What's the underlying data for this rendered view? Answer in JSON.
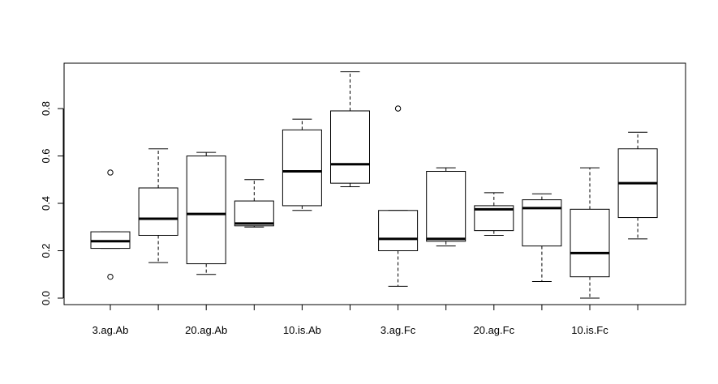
{
  "chart_data": {
    "type": "boxplot",
    "title": "",
    "xlabel": "",
    "ylabel": "",
    "ylim": [
      -0.03,
      0.99
    ],
    "y_ticks": [
      0.0,
      0.2,
      0.4,
      0.6,
      0.8
    ],
    "y_tick_labels": [
      "0.0",
      "0.2",
      "0.4",
      "0.6",
      "0.8"
    ],
    "x_tick_labels_shown": [
      {
        "position": 1,
        "label": "3.ag.Ab"
      },
      {
        "position": 3,
        "label": "20.ag.Ab"
      },
      {
        "position": 5,
        "label": "10.is.Ab"
      },
      {
        "position": 7,
        "label": "3.ag.Fc"
      },
      {
        "position": 9,
        "label": "20.ag.Fc"
      },
      {
        "position": 11,
        "label": "10.is.Fc"
      }
    ],
    "grid": false,
    "boxes": [
      {
        "position": 1,
        "whisker_low": 0.21,
        "q1": 0.21,
        "median": 0.24,
        "q3": 0.28,
        "whisker_high": 0.28,
        "outliers": [
          0.53,
          0.09
        ]
      },
      {
        "position": 2,
        "whisker_low": 0.15,
        "q1": 0.265,
        "median": 0.335,
        "q3": 0.465,
        "whisker_high": 0.63,
        "outliers": []
      },
      {
        "position": 3,
        "whisker_low": 0.1,
        "q1": 0.145,
        "median": 0.355,
        "q3": 0.6,
        "whisker_high": 0.615,
        "outliers": []
      },
      {
        "position": 4,
        "whisker_low": 0.3,
        "q1": 0.305,
        "median": 0.315,
        "q3": 0.41,
        "whisker_high": 0.5,
        "outliers": []
      },
      {
        "position": 5,
        "whisker_low": 0.37,
        "q1": 0.39,
        "median": 0.535,
        "q3": 0.71,
        "whisker_high": 0.755,
        "outliers": []
      },
      {
        "position": 6,
        "whisker_low": 0.47,
        "q1": 0.485,
        "median": 0.565,
        "q3": 0.79,
        "whisker_high": 0.955,
        "outliers": []
      },
      {
        "position": 7,
        "whisker_low": 0.05,
        "q1": 0.2,
        "median": 0.25,
        "q3": 0.37,
        "whisker_high": 0.37,
        "outliers": [
          0.8
        ]
      },
      {
        "position": 8,
        "whisker_low": 0.22,
        "q1": 0.24,
        "median": 0.25,
        "q3": 0.535,
        "whisker_high": 0.55,
        "outliers": []
      },
      {
        "position": 9,
        "whisker_low": 0.265,
        "q1": 0.285,
        "median": 0.375,
        "q3": 0.39,
        "whisker_high": 0.445,
        "outliers": []
      },
      {
        "position": 10,
        "whisker_low": 0.07,
        "q1": 0.22,
        "median": 0.38,
        "q3": 0.415,
        "whisker_high": 0.44,
        "outliers": []
      },
      {
        "position": 11,
        "whisker_low": 0.0,
        "q1": 0.09,
        "median": 0.19,
        "q3": 0.375,
        "whisker_high": 0.55,
        "outliers": []
      },
      {
        "position": 12,
        "whisker_low": 0.25,
        "q1": 0.34,
        "median": 0.485,
        "q3": 0.63,
        "whisker_high": 0.7,
        "outliers": []
      }
    ]
  }
}
